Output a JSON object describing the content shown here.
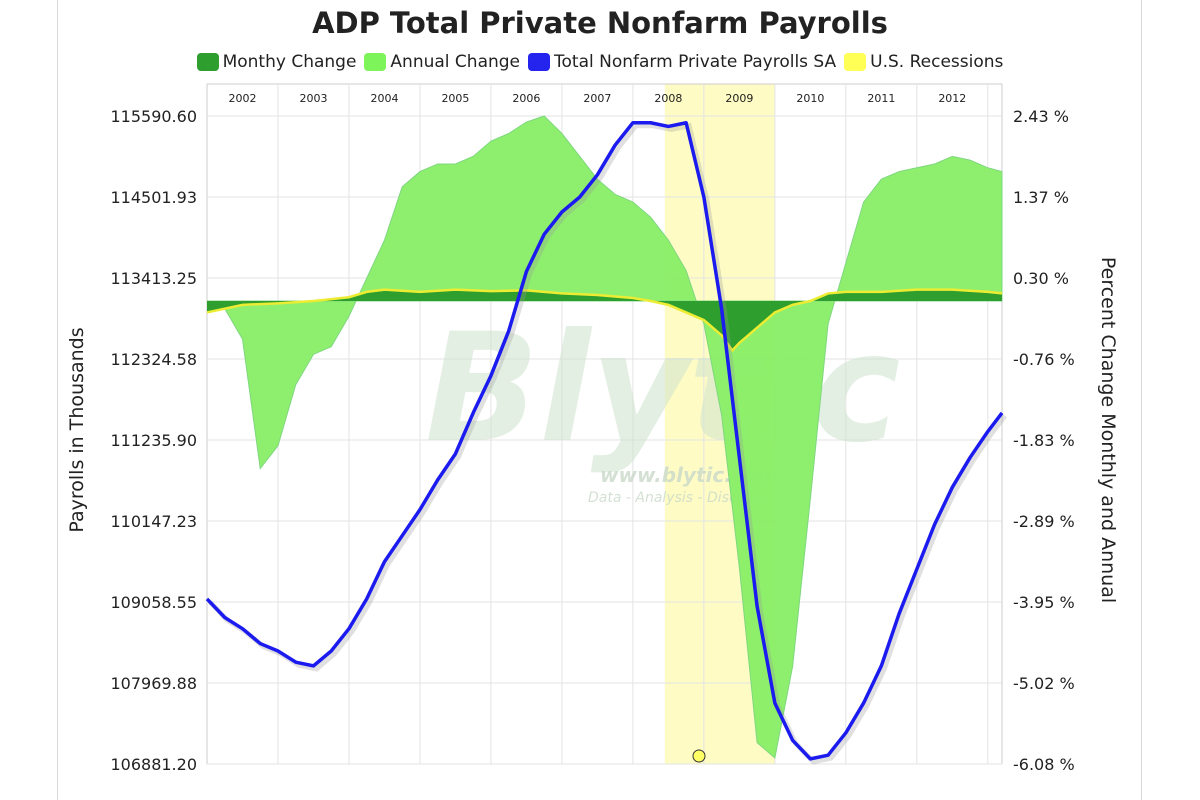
{
  "colors": {
    "monthly": "#2e9e2e",
    "annual": "#88ee66",
    "payrolls": "#1b1bef",
    "recession": "#fefcc4",
    "recession_line": "#ecec33",
    "grid": "#e3e3e3"
  },
  "watermark": {
    "logo": "Blytic",
    "url": "www.blytic.com",
    "tagline": "Data - Analysis - Discussion"
  },
  "chart_data": {
    "type": "line",
    "title": "ADP Total Private Nonfarm Payrolls",
    "legend": [
      {
        "name": "Monthy Change",
        "color": "#2e9e2e"
      },
      {
        "name": "Annual Change",
        "color": "#88ee66"
      },
      {
        "name": "Total Nonfarm Private Payrolls SA",
        "color": "#1b1bef"
      },
      {
        "name": "U.S. Recessions",
        "color": "#ffff55"
      }
    ],
    "legend_position": "top-center",
    "ylabel_left": "Payrolls in Thousands",
    "ylabel_right": "Percent Change Monthly and Annual",
    "y_left_ticks": [
      "115590.60",
      "114501.93",
      "113413.25",
      "112324.58",
      "111235.90",
      "110147.23",
      "109058.55",
      "107969.88",
      "106881.20"
    ],
    "y_right_ticks": [
      "2.43 %",
      "1.37 %",
      "0.30 %",
      "-0.76 %",
      "-1.83 %",
      "-2.89 %",
      "-3.95 %",
      "-5.02 %",
      "-6.08 %"
    ],
    "y_left_range": [
      106881.2,
      115590.6
    ],
    "y_right_range": [
      -6.08,
      2.43
    ],
    "x_range": [
      2001.5,
      2012.7
    ],
    "years": [
      "2002",
      "2003",
      "2004",
      "2005",
      "2006",
      "2007",
      "2008",
      "2009",
      "2010",
      "2011",
      "2012"
    ],
    "grid": true,
    "recessions": [
      [
        2007.95,
        2009.5
      ]
    ],
    "series": [
      {
        "name": "Total Nonfarm Private Payrolls SA",
        "axis": "left",
        "x": [
          2001.5,
          2001.75,
          2002.0,
          2002.25,
          2002.5,
          2002.75,
          2003.0,
          2003.25,
          2003.5,
          2003.75,
          2004.0,
          2004.25,
          2004.5,
          2004.75,
          2005.0,
          2005.25,
          2005.5,
          2005.75,
          2006.0,
          2006.25,
          2006.5,
          2006.75,
          2007.0,
          2007.25,
          2007.5,
          2007.75,
          2008.0,
          2008.25,
          2008.5,
          2008.75,
          2009.0,
          2009.25,
          2009.5,
          2009.75,
          2010.0,
          2010.25,
          2010.5,
          2010.75,
          2011.0,
          2011.25,
          2011.5,
          2011.75,
          2012.0,
          2012.25,
          2012.5,
          2012.7
        ],
        "values": [
          109100,
          108850,
          108700,
          108500,
          108400,
          108250,
          108200,
          108400,
          108700,
          109100,
          109600,
          109950,
          110300,
          110700,
          111050,
          111600,
          112100,
          112700,
          113500,
          114000,
          114300,
          114500,
          114800,
          115200,
          115500,
          115500,
          115450,
          115500,
          114500,
          113000,
          111000,
          109000,
          107700,
          107200,
          106950,
          107000,
          107300,
          107700,
          108200,
          108900,
          109500,
          110100,
          110600,
          111000,
          111350,
          111600
        ]
      },
      {
        "name": "Annual Change",
        "axis": "right",
        "x": [
          2001.5,
          2001.75,
          2002.0,
          2002.25,
          2002.5,
          2002.75,
          2003.0,
          2003.25,
          2003.5,
          2003.75,
          2004.0,
          2004.25,
          2004.5,
          2004.75,
          2005.0,
          2005.25,
          2005.5,
          2005.75,
          2006.0,
          2006.25,
          2006.5,
          2006.75,
          2007.0,
          2007.25,
          2007.5,
          2007.75,
          2008.0,
          2008.25,
          2008.5,
          2008.75,
          2009.0,
          2009.25,
          2009.5,
          2009.75,
          2010.0,
          2010.25,
          2010.5,
          2010.75,
          2011.0,
          2011.25,
          2011.5,
          2011.75,
          2012.0,
          2012.25,
          2012.5,
          2012.7
        ],
        "values": [
          0,
          -0.1,
          -0.5,
          -2.2,
          -1.9,
          -1.1,
          -0.7,
          -0.6,
          -0.2,
          0.3,
          0.8,
          1.5,
          1.7,
          1.8,
          1.8,
          1.9,
          2.1,
          2.2,
          2.35,
          2.43,
          2.2,
          1.9,
          1.6,
          1.4,
          1.3,
          1.1,
          0.8,
          0.4,
          -0.3,
          -1.5,
          -3.5,
          -5.8,
          -6.0,
          -4.8,
          -2.6,
          -0.3,
          0.5,
          1.3,
          1.6,
          1.7,
          1.75,
          1.8,
          1.9,
          1.85,
          1.75,
          1.7
        ]
      },
      {
        "name": "Monthy Change",
        "axis": "right",
        "x": [
          2001.5,
          2002.0,
          2002.5,
          2003.0,
          2003.5,
          2003.75,
          2004.0,
          2004.5,
          2005.0,
          2005.5,
          2006.0,
          2006.5,
          2007.0,
          2007.5,
          2007.75,
          2008.0,
          2008.25,
          2008.5,
          2008.75,
          2008.9,
          2009.0,
          2009.25,
          2009.5,
          2009.75,
          2010.0,
          2010.25,
          2010.5,
          2011.0,
          2011.5,
          2012.0,
          2012.5,
          2012.7
        ],
        "values": [
          -0.15,
          -0.05,
          -0.03,
          0.0,
          0.05,
          0.12,
          0.15,
          0.12,
          0.15,
          0.13,
          0.14,
          0.1,
          0.08,
          0.04,
          0.0,
          -0.05,
          -0.15,
          -0.25,
          -0.45,
          -0.65,
          -0.55,
          -0.35,
          -0.15,
          -0.05,
          0.0,
          0.1,
          0.12,
          0.12,
          0.15,
          0.15,
          0.12,
          0.1
        ]
      }
    ]
  }
}
